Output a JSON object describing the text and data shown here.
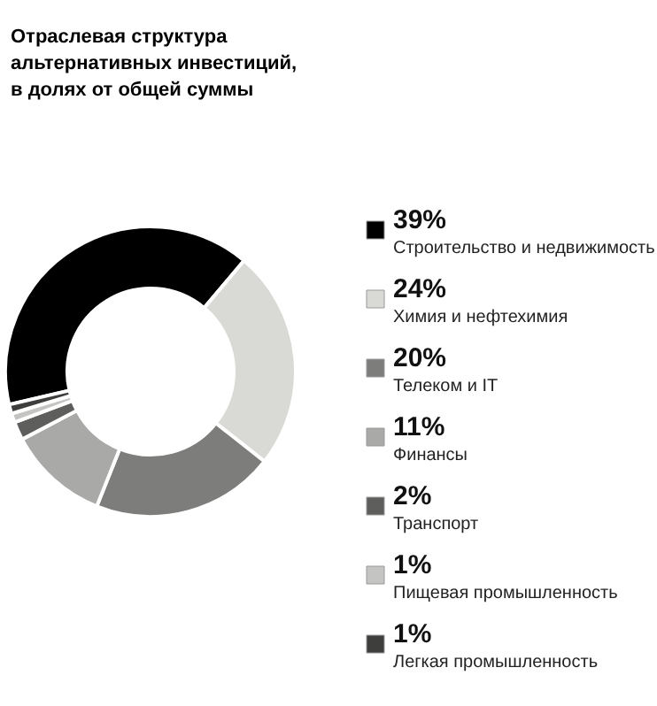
{
  "chart_data": {
    "type": "donut",
    "title": "Отраслевая структура альтернативных инвестиций, в долях от общей суммы",
    "categories": [
      "Строительство и недвижимость",
      "Химия и нефтехимия",
      "Телеком и IT",
      "Финансы",
      "Транспорт",
      "Пищевая промышленность",
      "Легкая промышленность"
    ],
    "values": [
      39,
      24,
      20,
      11,
      2,
      1,
      1
    ],
    "legend": "right",
    "value_labels": [
      "39%",
      "24%",
      "20%",
      "11%",
      "2%",
      "1%",
      "1%"
    ],
    "colors": [
      "#000000",
      "#d9d9d6",
      "#7d7e7b",
      "#a9aaa7",
      "#5e5f5c",
      "#c4c5c2",
      "#3e3f3c"
    ]
  }
}
